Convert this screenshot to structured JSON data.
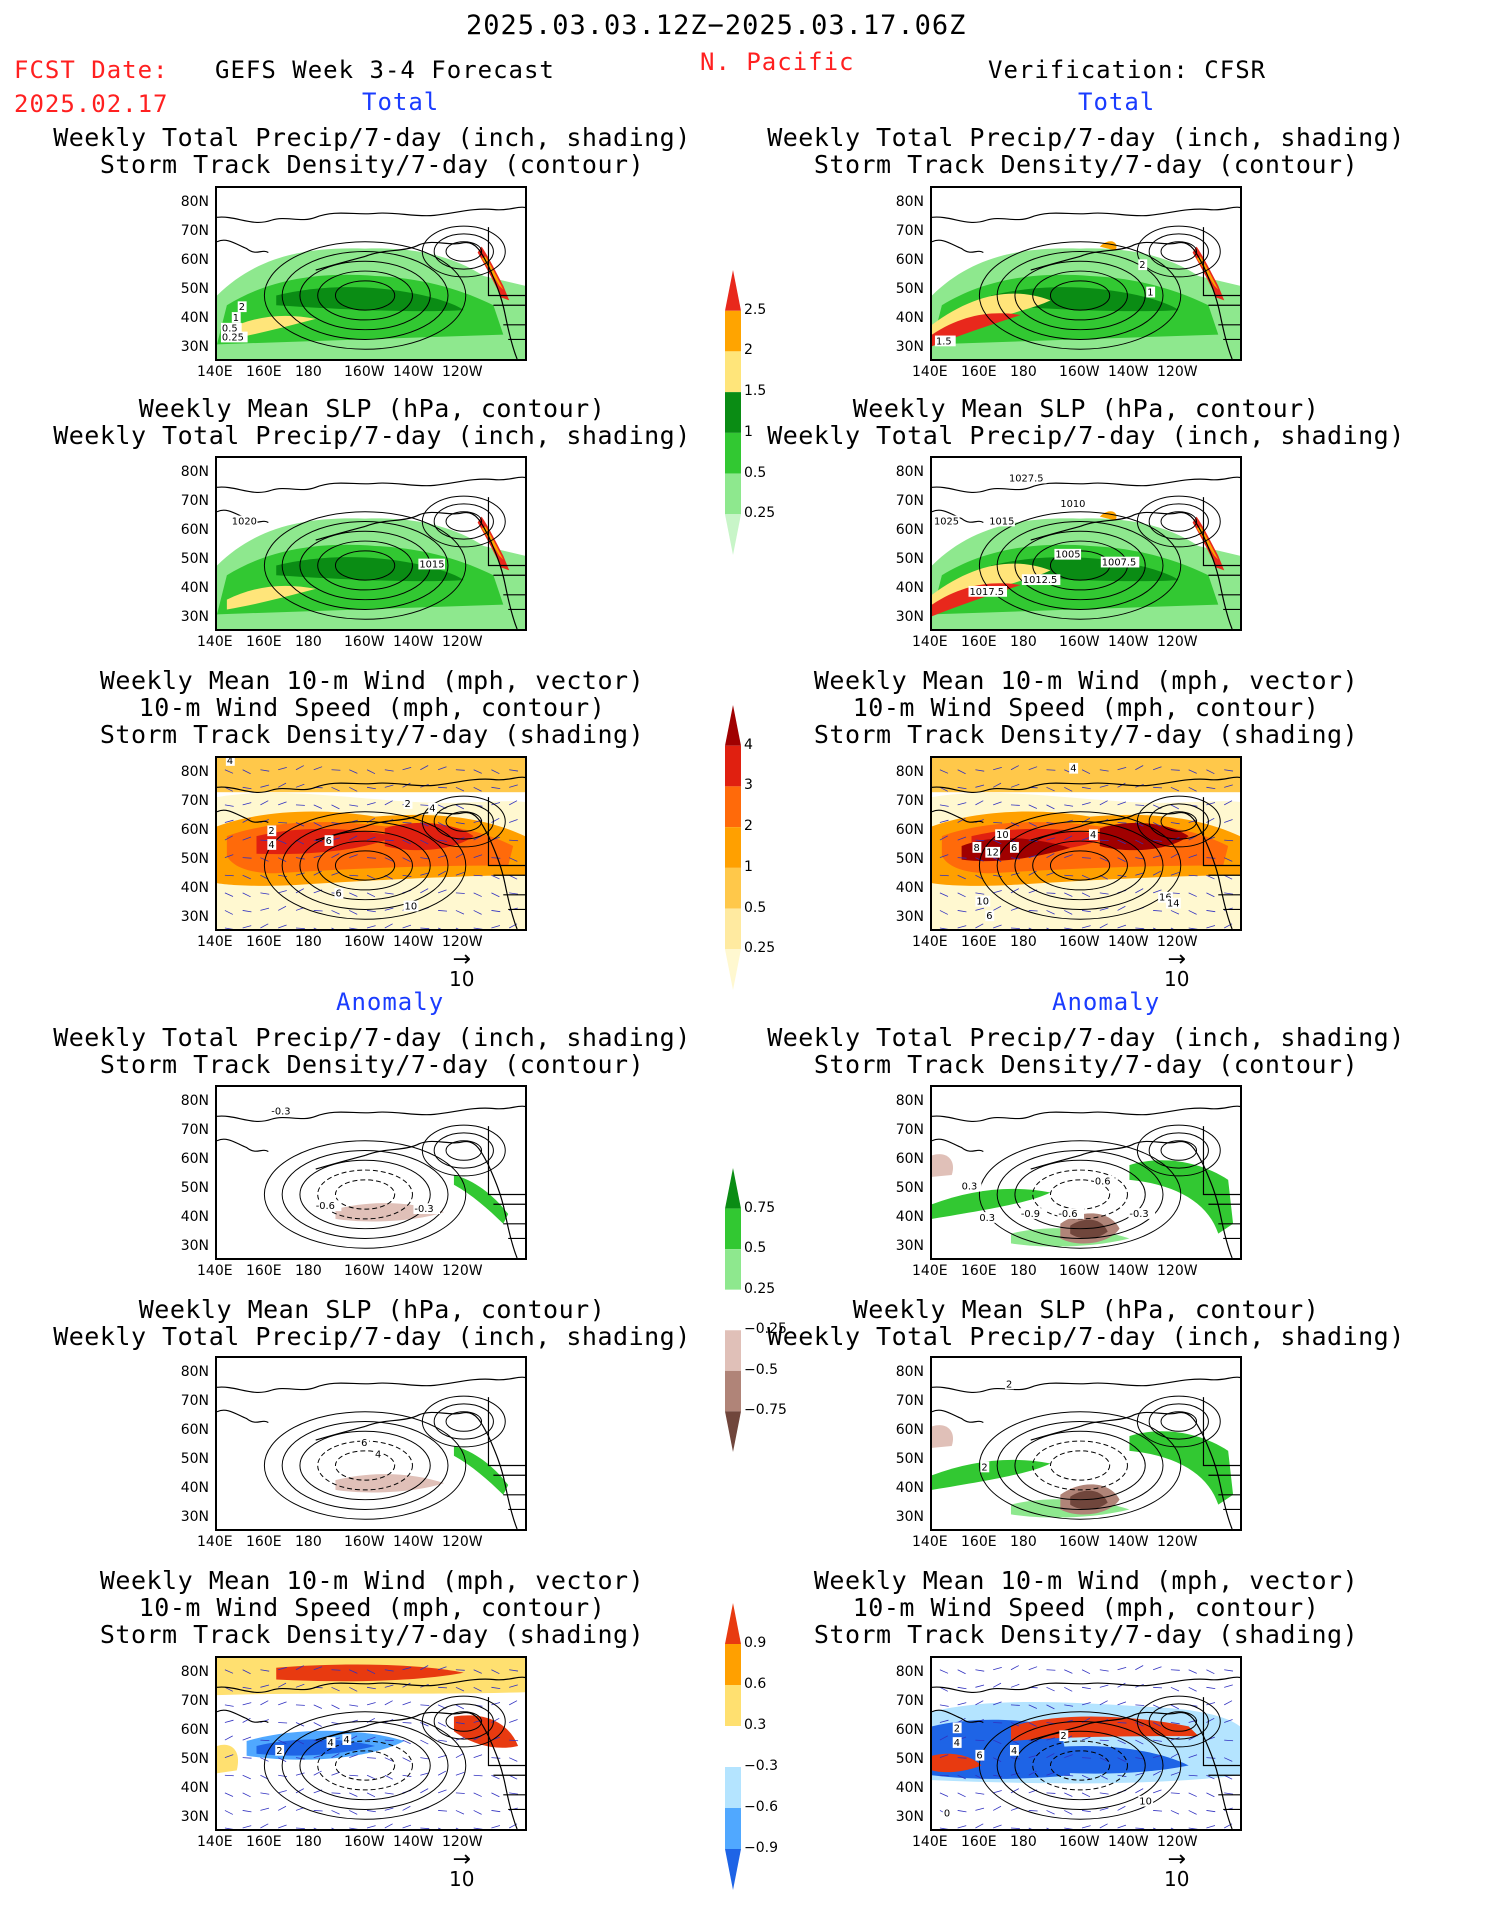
{
  "header": {
    "date_range": "2025.03.03.12Z−2025.03.17.06Z",
    "fcst_label": "FCST Date:",
    "fcst_date": "2025.02.17",
    "forecast_title": "GEFS Week 3-4 Forecast",
    "region": "N. Pacific",
    "verification": "Verification: CFSR"
  },
  "sections": {
    "total": "Total",
    "anomaly": "Anomaly"
  },
  "panel_titles": {
    "precip_storm": [
      "Weekly Total Precip/7-day (inch, shading)",
      "Storm Track Density/7-day (contour)"
    ],
    "slp_precip": [
      "Weekly Mean SLP (hPa, contour)",
      "Weekly Total Precip/7-day (inch, shading)"
    ],
    "wind_storm": [
      "Weekly Mean 10-m Wind (mph, vector)",
      "10-m Wind Speed (mph, contour)",
      "Storm Track Density/7-day (shading)"
    ]
  },
  "axes": {
    "lat_labels": [
      "80N",
      "70N",
      "60N",
      "50N",
      "40N",
      "30N"
    ],
    "lon_labels": [
      "140E",
      "160E",
      "180",
      "160W",
      "140W",
      "120W"
    ]
  },
  "vector_reference": "10",
  "colorbars": {
    "precip_total": {
      "labels": [
        "2.5",
        "2",
        "1.5",
        "1",
        "0.5",
        "0.25"
      ],
      "colors": [
        "#e8281c",
        "#ffa400",
        "#ffe57a",
        "#0a8c14",
        "#32c832",
        "#8ee88e",
        "#c8f5c8"
      ]
    },
    "storm_total": {
      "labels": [
        "4",
        "3",
        "2",
        "1",
        "0.5",
        "0.25"
      ],
      "colors": [
        "#a00000",
        "#e02010",
        "#ff6a0a",
        "#ffa000",
        "#ffc84a",
        "#ffeaa0",
        "#fff8d0"
      ]
    },
    "precip_anom": {
      "labels": [
        "0.75",
        "0.5",
        "0.25",
        "−0.25",
        "−0.5",
        "−0.75"
      ],
      "colors": [
        "#0a8c14",
        "#32c832",
        "#8ee88e",
        "#ffffff",
        "#e0c0b8",
        "#b08478",
        "#70463c"
      ]
    },
    "storm_anom": {
      "labels": [
        "0.9",
        "0.6",
        "0.3",
        "−0.3",
        "−0.6",
        "−0.9"
      ],
      "colors": [
        "#e83a10",
        "#ffa000",
        "#ffe070",
        "#ffffff",
        "#b4e4ff",
        "#50a8ff",
        "#1e64e6"
      ]
    }
  },
  "map_labels": {
    "r1l": [
      "2",
      "1",
      "0.5",
      "0.25"
    ],
    "r1r": [
      "2",
      "1",
      "1.5"
    ],
    "r2l": [
      "1020",
      "1015"
    ],
    "r2r": [
      "1027.5",
      "1010",
      "1025",
      "1015",
      "1005",
      "1007.5",
      "1012.5",
      "1017.5"
    ],
    "r3l": [
      "4",
      "2",
      "4",
      "6",
      "2",
      "4",
      "6",
      "10"
    ],
    "r3r": [
      "4",
      "10",
      "8",
      "12",
      "6",
      "4",
      "10",
      "6",
      "16",
      "14"
    ],
    "r4l": [
      "-0.3",
      "-0.6",
      "-0.3"
    ],
    "r4r": [
      "0.3",
      "0.3",
      "-0.9",
      "-0.6",
      "-0.3",
      "0.6"
    ],
    "r5l": [
      "6",
      "4"
    ],
    "r5r": [
      "2",
      "2"
    ],
    "r6l": [
      "2",
      "4",
      "4"
    ],
    "r6r": [
      "2",
      "4",
      "6",
      "4",
      "2",
      "10",
      "0"
    ]
  }
}
